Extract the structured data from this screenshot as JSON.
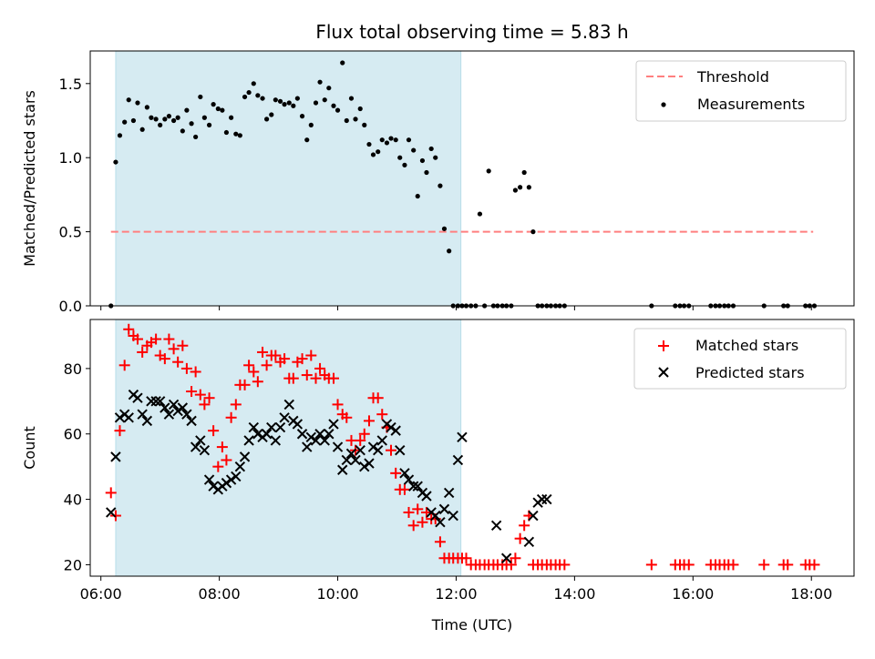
{
  "chart_data": [
    {
      "type": "scatter",
      "title": "Flux total observing time = 5.83 h",
      "xlabel": "",
      "ylabel": "Matched/Predicted stars",
      "xlim": [
        5.82,
        18.72
      ],
      "ylim": [
        0,
        1.72
      ],
      "yticks": [
        0.0,
        0.5,
        1.0,
        1.5
      ],
      "ytick_labels": [
        "0.0",
        "0.5",
        "1.0",
        "1.5"
      ],
      "xticks": [
        6,
        8,
        10,
        12,
        14,
        16,
        18
      ],
      "xtick_labels": [
        "",
        "",
        "",
        "",
        "",
        "",
        ""
      ],
      "highlight_span": [
        6.25,
        12.08
      ],
      "highlight_color": "#add8e6",
      "legend_position": "upper right",
      "threshold": {
        "name": "Threshold",
        "y": 0.5,
        "x_range": [
          6.17,
          18.03
        ],
        "color": "#ff7f7f",
        "style": "dashed"
      },
      "series": [
        {
          "name": "Measurements",
          "color": "#000000",
          "marker": "dot",
          "x": [
            6.17,
            6.25,
            6.32,
            6.4,
            6.47,
            6.55,
            6.62,
            6.7,
            6.78,
            6.85,
            6.93,
            7.0,
            7.08,
            7.15,
            7.23,
            7.3,
            7.38,
            7.45,
            7.53,
            7.6,
            7.68,
            7.75,
            7.83,
            7.9,
            7.98,
            8.05,
            8.12,
            8.2,
            8.28,
            8.35,
            8.43,
            8.5,
            8.58,
            8.65,
            8.73,
            8.8,
            8.88,
            8.95,
            9.03,
            9.1,
            9.18,
            9.25,
            9.32,
            9.4,
            9.48,
            9.55,
            9.63,
            9.7,
            9.78,
            9.85,
            9.93,
            10.0,
            10.08,
            10.15,
            10.23,
            10.3,
            10.38,
            10.45,
            10.53,
            10.6,
            10.68,
            10.75,
            10.83,
            10.9,
            10.98,
            11.05,
            11.13,
            11.2,
            11.28,
            11.35,
            11.43,
            11.5,
            11.58,
            11.65,
            11.73,
            11.8,
            11.88,
            11.95,
            12.03,
            12.1,
            12.17,
            12.25,
            12.33,
            12.4,
            12.48,
            12.55,
            12.63,
            12.7,
            12.78,
            12.85,
            12.93,
            13.0,
            13.08,
            13.15,
            13.23,
            13.3,
            13.38,
            13.45,
            13.53,
            13.6,
            13.68,
            13.75,
            13.83,
            15.3,
            15.7,
            15.78,
            15.85,
            15.93,
            16.3,
            16.38,
            16.45,
            16.53,
            16.6,
            16.68,
            17.2,
            17.53,
            17.6,
            17.9,
            17.97,
            18.05
          ],
          "y": [
            0.0,
            0.97,
            1.15,
            1.24,
            1.39,
            1.25,
            1.37,
            1.19,
            1.34,
            1.27,
            1.26,
            1.22,
            1.26,
            1.28,
            1.25,
            1.27,
            1.18,
            1.32,
            1.23,
            1.14,
            1.41,
            1.27,
            1.22,
            1.36,
            1.33,
            1.32,
            1.17,
            1.27,
            1.16,
            1.15,
            1.41,
            1.44,
            1.5,
            1.42,
            1.4,
            1.26,
            1.29,
            1.39,
            1.38,
            1.36,
            1.37,
            1.35,
            1.4,
            1.28,
            1.12,
            1.22,
            1.37,
            1.51,
            1.39,
            1.47,
            1.35,
            1.32,
            1.64,
            1.25,
            1.4,
            1.26,
            1.33,
            1.22,
            1.09,
            1.02,
            1.04,
            1.12,
            1.1,
            1.13,
            1.12,
            1.0,
            0.95,
            1.12,
            1.05,
            0.74,
            0.98,
            0.9,
            1.06,
            1.0,
            0.81,
            0.52,
            0.37,
            0.0,
            0.0,
            0.0,
            0.0,
            0.0,
            0.0,
            0.62,
            0.0,
            0.91,
            0.0,
            0.0,
            0.0,
            0.0,
            0.0,
            0.78,
            0.8,
            0.9,
            0.8,
            0.5,
            0.0,
            0.0,
            0.0,
            0.0,
            0.0,
            0.0,
            0.0,
            0.0,
            0.0,
            0.0,
            0.0,
            0.0,
            0.0,
            0.0,
            0.0,
            0.0,
            0.0,
            0.0,
            0.0,
            0.0,
            0.0,
            0.0,
            0.0,
            0.0
          ]
        }
      ]
    },
    {
      "type": "scatter",
      "title": "",
      "xlabel": "Time (UTC)",
      "ylabel": "Count",
      "xlim": [
        5.82,
        18.72
      ],
      "ylim": [
        16.5,
        95
      ],
      "yticks": [
        20,
        40,
        60,
        80
      ],
      "ytick_labels": [
        "20",
        "40",
        "60",
        "80"
      ],
      "xticks": [
        6,
        8,
        10,
        12,
        14,
        16,
        18
      ],
      "xtick_labels": [
        "06:00",
        "08:00",
        "10:00",
        "12:00",
        "14:00",
        "16:00",
        "18:00"
      ],
      "highlight_span": [
        6.25,
        12.08
      ],
      "highlight_color": "#add8e6",
      "legend_position": "upper right",
      "series": [
        {
          "name": "Matched stars",
          "color": "#ff0000",
          "marker": "plus",
          "x": [
            6.17,
            6.25,
            6.32,
            6.4,
            6.47,
            6.55,
            6.62,
            6.7,
            6.78,
            6.85,
            6.93,
            7.0,
            7.08,
            7.15,
            7.23,
            7.3,
            7.38,
            7.45,
            7.53,
            7.6,
            7.68,
            7.75,
            7.83,
            7.9,
            7.98,
            8.05,
            8.12,
            8.2,
            8.28,
            8.35,
            8.43,
            8.5,
            8.58,
            8.65,
            8.73,
            8.8,
            8.88,
            8.95,
            9.03,
            9.1,
            9.18,
            9.25,
            9.32,
            9.4,
            9.48,
            9.55,
            9.63,
            9.7,
            9.78,
            9.85,
            9.93,
            10.0,
            10.08,
            10.15,
            10.23,
            10.3,
            10.38,
            10.45,
            10.53,
            10.6,
            10.68,
            10.75,
            10.83,
            10.9,
            10.98,
            11.05,
            11.13,
            11.2,
            11.28,
            11.35,
            11.43,
            11.5,
            11.58,
            11.65,
            11.73,
            11.8,
            11.88,
            11.95,
            12.03,
            12.1,
            12.17,
            12.25,
            12.33,
            12.4,
            12.48,
            12.55,
            12.63,
            12.7,
            12.78,
            12.85,
            12.93,
            13.0,
            13.08,
            13.15,
            13.23,
            13.3,
            13.38,
            13.45,
            13.53,
            13.6,
            13.68,
            13.75,
            13.83,
            15.3,
            15.7,
            15.78,
            15.85,
            15.93,
            16.3,
            16.38,
            16.45,
            16.53,
            16.6,
            16.68,
            17.2,
            17.53,
            17.6,
            17.9,
            17.97,
            18.05
          ],
          "y": [
            42,
            35,
            61,
            81,
            92,
            90,
            89,
            85,
            87,
            88,
            89,
            84,
            83,
            89,
            86,
            82,
            87,
            80,
            73,
            79,
            72,
            69,
            71,
            61,
            50,
            56,
            52,
            65,
            69,
            75,
            75,
            81,
            79,
            76,
            85,
            81,
            84,
            84,
            82,
            83,
            77,
            77,
            82,
            83,
            78,
            84,
            77,
            80,
            78,
            77,
            77,
            69,
            66,
            65,
            58,
            55,
            58,
            60,
            64,
            71,
            71,
            66,
            62,
            55,
            48,
            43,
            43,
            36,
            32,
            37,
            33,
            36,
            34,
            34,
            27,
            22,
            22,
            22,
            22,
            22,
            22,
            20,
            20,
            20,
            20,
            20,
            20,
            20,
            20,
            20,
            20,
            22,
            28,
            32,
            35,
            20,
            20,
            20,
            20,
            20,
            20,
            20,
            20,
            20,
            20,
            20,
            20,
            20,
            20,
            20,
            20,
            20,
            20,
            20,
            20,
            20,
            20,
            20,
            20,
            20
          ]
        },
        {
          "name": "Predicted stars",
          "color": "#000000",
          "marker": "x",
          "x": [
            6.17,
            6.25,
            6.32,
            6.4,
            6.47,
            6.55,
            6.62,
            6.7,
            6.78,
            6.85,
            6.93,
            7.0,
            7.08,
            7.15,
            7.23,
            7.3,
            7.38,
            7.45,
            7.53,
            7.6,
            7.68,
            7.75,
            7.83,
            7.9,
            7.98,
            8.05,
            8.12,
            8.2,
            8.28,
            8.35,
            8.43,
            8.5,
            8.58,
            8.65,
            8.73,
            8.8,
            8.88,
            8.95,
            9.03,
            9.1,
            9.18,
            9.25,
            9.32,
            9.4,
            9.48,
            9.55,
            9.63,
            9.7,
            9.78,
            9.85,
            9.93,
            10.0,
            10.08,
            10.15,
            10.23,
            10.3,
            10.38,
            10.45,
            10.53,
            10.6,
            10.68,
            10.75,
            10.83,
            10.9,
            10.98,
            11.05,
            11.13,
            11.2,
            11.28,
            11.35,
            11.43,
            11.5,
            11.58,
            11.65,
            11.73,
            11.8,
            11.88,
            11.95,
            12.03,
            12.1,
            12.68,
            12.85,
            13.23,
            13.3,
            13.38,
            13.45,
            13.53
          ],
          "y": [
            36,
            53,
            65,
            66,
            65,
            72,
            71,
            66,
            64,
            70,
            70,
            70,
            68,
            66,
            69,
            67,
            68,
            66,
            64,
            56,
            58,
            55,
            46,
            44,
            43,
            44,
            45,
            46,
            47,
            50,
            53,
            58,
            62,
            60,
            59,
            60,
            62,
            58,
            62,
            65,
            69,
            64,
            63,
            60,
            56,
            59,
            58,
            60,
            58,
            60,
            63,
            56,
            49,
            52,
            54,
            52,
            55,
            50,
            51,
            56,
            55,
            58,
            63,
            62,
            61,
            55,
            48,
            46,
            44,
            44,
            42,
            41,
            36,
            35,
            33,
            37,
            42,
            35,
            52,
            59,
            32,
            22,
            27,
            35,
            39,
            40,
            40
          ]
        }
      ]
    }
  ]
}
